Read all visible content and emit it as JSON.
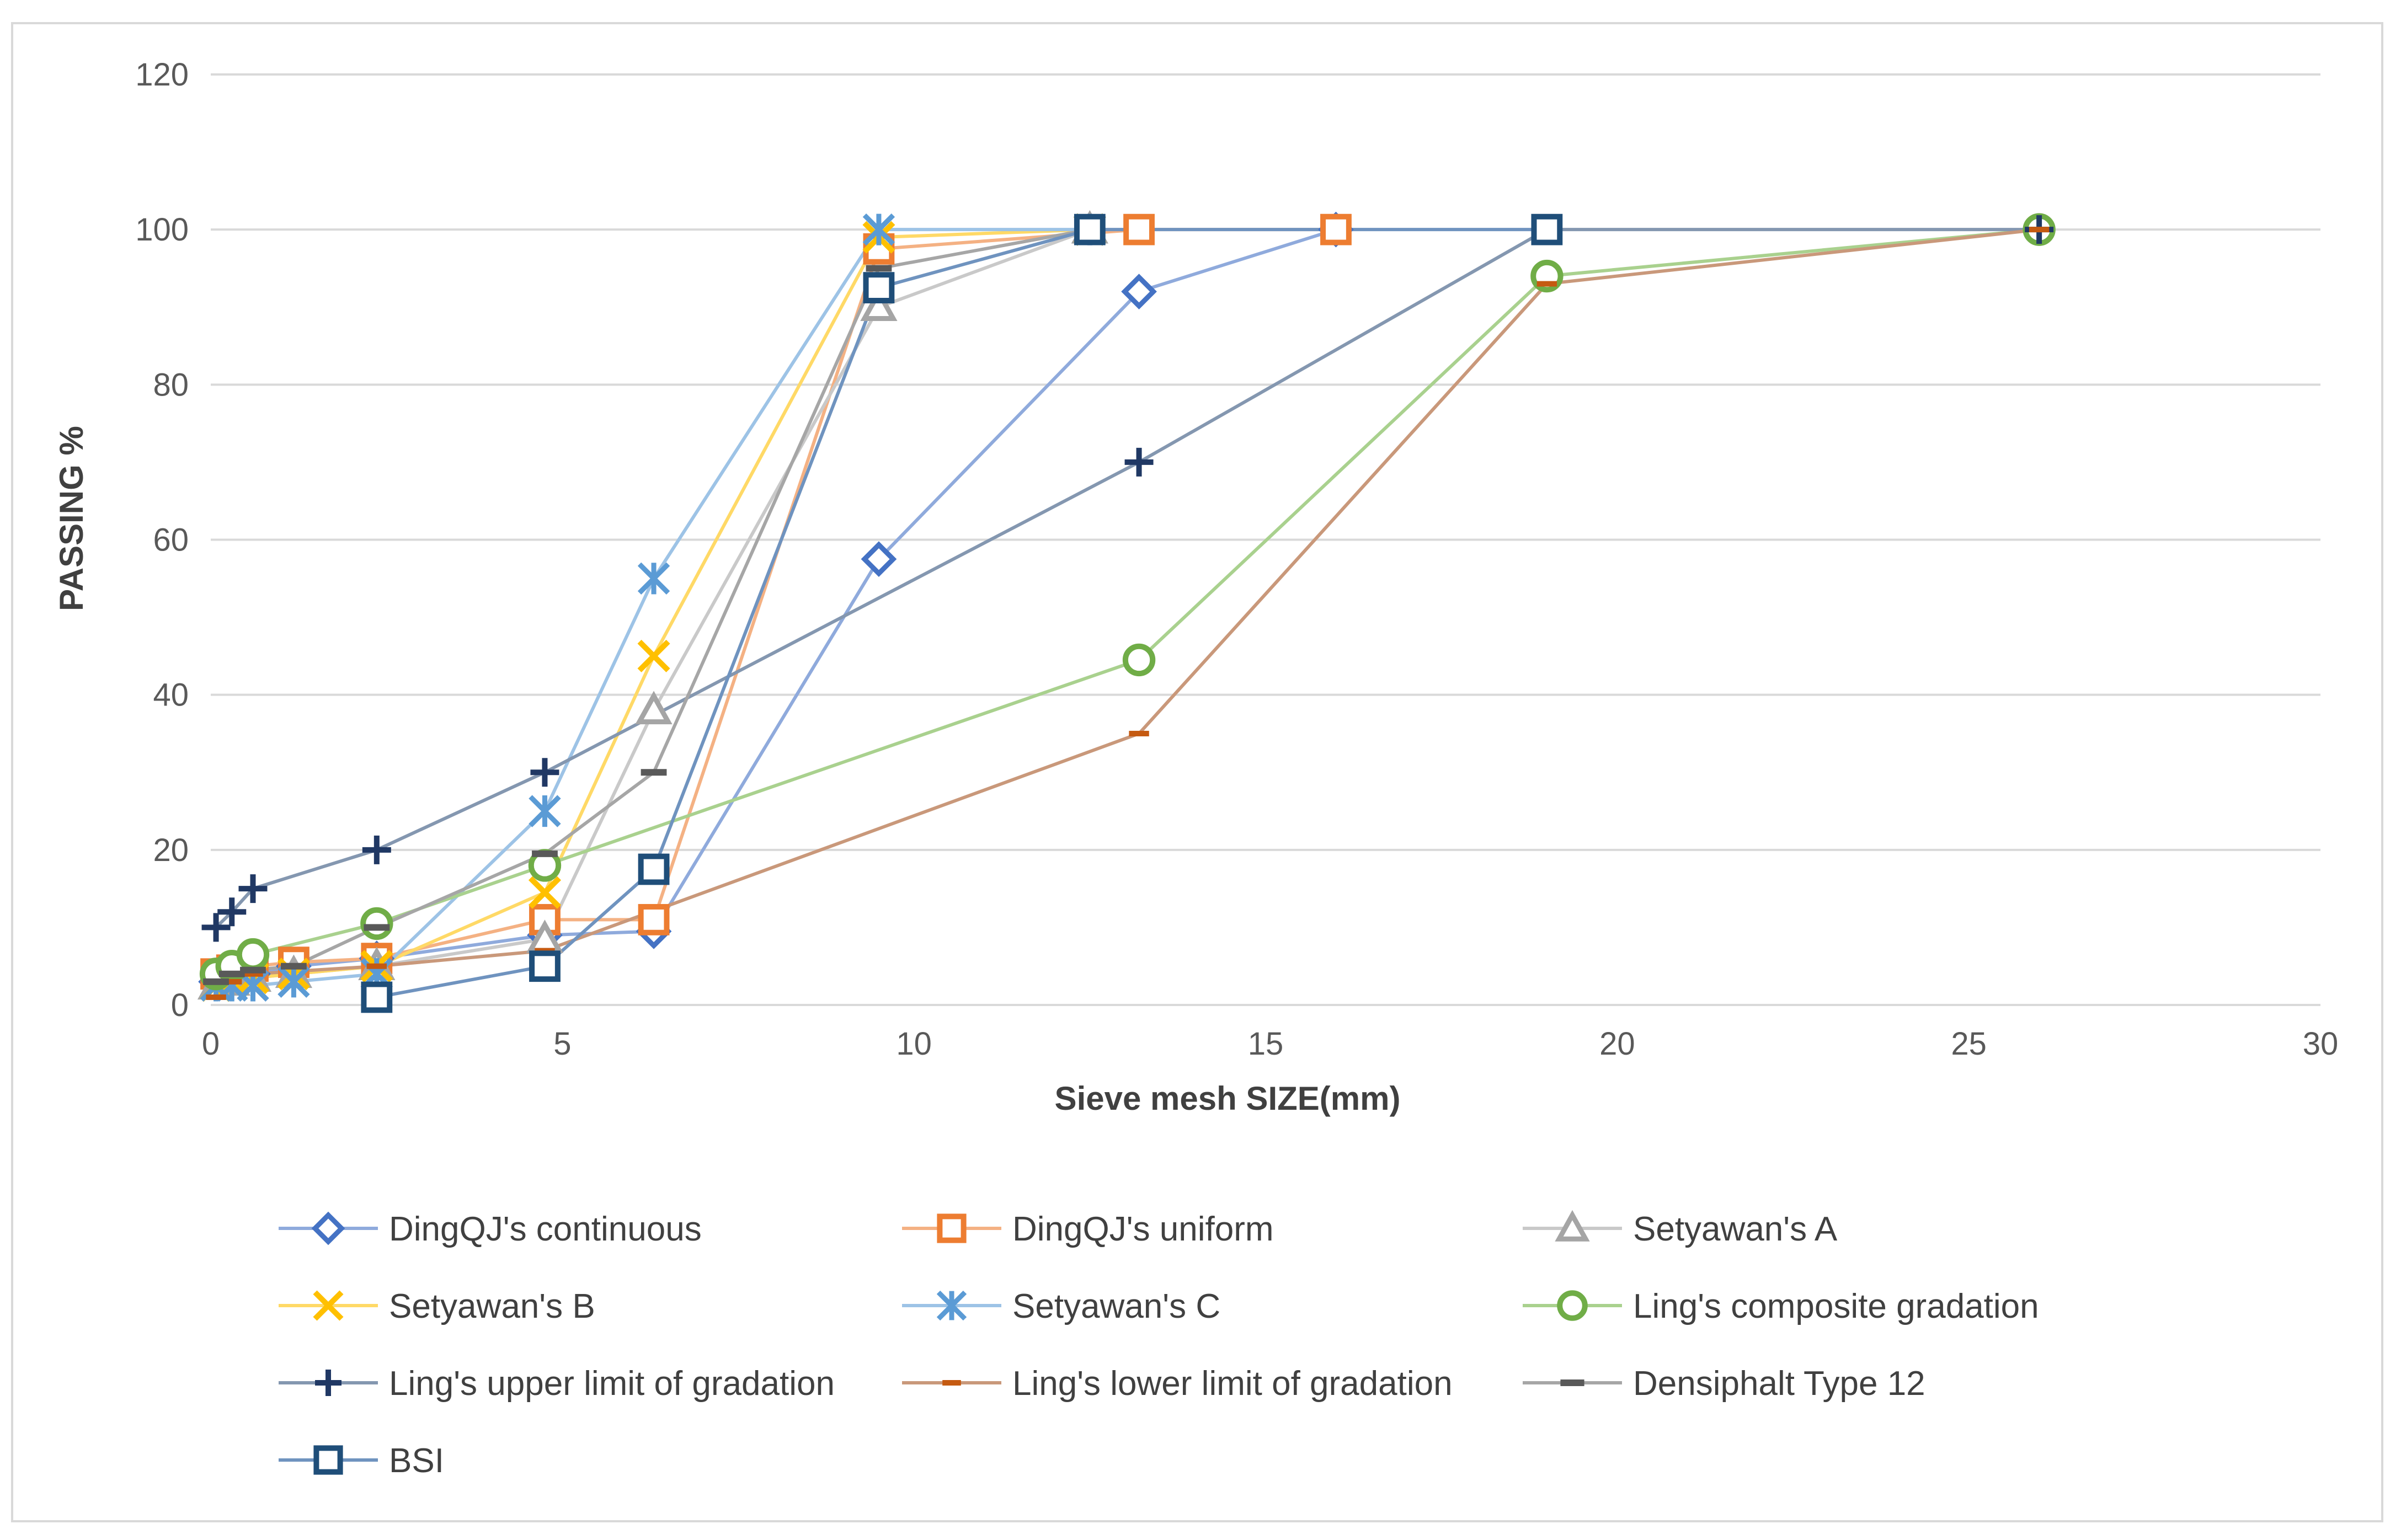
{
  "chart_data": {
    "type": "line",
    "title": "",
    "xlabel": "Sieve mesh SIZE(mm)",
    "ylabel": "PASSING %",
    "xlim": [
      0,
      30
    ],
    "ylim": [
      0,
      120
    ],
    "x_ticks": [
      0,
      5,
      10,
      15,
      20,
      25,
      30
    ],
    "y_ticks": [
      0,
      20,
      40,
      60,
      80,
      100,
      120
    ],
    "grid": "horizontal",
    "legend_position": "bottom",
    "series": [
      {
        "name": "DingQJ's continuous",
        "color": "#4472c4",
        "line_color": "#8faadc",
        "marker": "diamond",
        "x": [
          0.075,
          0.3,
          0.6,
          1.18,
          2.36,
          4.75,
          6.3,
          9.5,
          13.2,
          16
        ],
        "y": [
          3,
          4,
          4,
          5,
          6,
          9,
          9.5,
          57.5,
          92,
          100
        ]
      },
      {
        "name": "DingQJ's uniform",
        "color": "#ed7d31",
        "line_color": "#f4b183",
        "marker": "square",
        "x": [
          0.075,
          0.3,
          0.6,
          1.18,
          2.36,
          4.75,
          6.3,
          9.5,
          13.2,
          16
        ],
        "y": [
          4,
          4.5,
          5,
          5.5,
          6,
          11,
          11,
          97.5,
          100,
          100
        ]
      },
      {
        "name": "Setyawan's A",
        "color": "#a5a5a5",
        "line_color": "#c9c9c9",
        "marker": "triangle",
        "x": [
          0.075,
          0.3,
          0.6,
          1.18,
          2.36,
          4.75,
          6.3,
          9.5,
          12.5
        ],
        "y": [
          2.5,
          3,
          3.5,
          4,
          5,
          8.5,
          38,
          90,
          100
        ]
      },
      {
        "name": "Setyawan's B",
        "color": "#ffc000",
        "line_color": "#ffd966",
        "marker": "x",
        "x": [
          0.075,
          0.3,
          0.6,
          1.18,
          2.36,
          4.75,
          6.3,
          9.5,
          12.5
        ],
        "y": [
          2.5,
          3,
          3.5,
          4,
          5,
          14.5,
          45,
          99,
          100
        ]
      },
      {
        "name": "Setyawan's C",
        "color": "#5b9bd5",
        "line_color": "#9dc3e6",
        "marker": "asterisk",
        "x": [
          0.075,
          0.3,
          0.6,
          1.18,
          2.36,
          4.75,
          6.3,
          9.5,
          12.5
        ],
        "y": [
          2.5,
          2.5,
          2.5,
          3,
          4,
          25,
          55,
          100,
          100
        ]
      },
      {
        "name": "Ling's composite gradation",
        "color": "#70ad47",
        "line_color": "#a9d18e",
        "marker": "circle",
        "x": [
          0.075,
          0.3,
          0.6,
          2.36,
          4.75,
          13.2,
          19,
          26
        ],
        "y": [
          4,
          5,
          6.5,
          10.5,
          18,
          44.5,
          94,
          100
        ]
      },
      {
        "name": "Ling's upper limit of gradation",
        "color": "#203864",
        "line_color": "#8497b0",
        "marker": "plus",
        "x": [
          0.075,
          0.3,
          0.6,
          2.36,
          4.75,
          13.2,
          19,
          26
        ],
        "y": [
          10,
          12,
          15,
          20,
          30,
          70,
          100,
          100
        ]
      },
      {
        "name": "Ling's lower limit of gradation",
        "color": "#c55a11",
        "line_color": "#c9987a",
        "marker": "dash",
        "x": [
          0.075,
          0.3,
          0.6,
          2.36,
          4.75,
          13.2,
          19,
          26
        ],
        "y": [
          1,
          3,
          4,
          5,
          7,
          35,
          93,
          100
        ]
      },
      {
        "name": "Densiphalt Type 12",
        "color": "#595959",
        "line_color": "#a6a6a6",
        "marker": "bar",
        "x": [
          0.075,
          0.3,
          0.6,
          1.18,
          2.36,
          4.75,
          6.3,
          9.5,
          12.5
        ],
        "y": [
          3,
          4,
          4.5,
          5,
          10,
          19.5,
          30,
          95,
          100
        ]
      },
      {
        "name": "BSI",
        "color": "#1f4e79",
        "line_color": "#6f93bf",
        "marker": "square",
        "x": [
          2.36,
          4.75,
          6.3,
          9.5,
          12.5,
          19
        ],
        "y": [
          1,
          5,
          17.5,
          92.5,
          100,
          100
        ]
      }
    ]
  }
}
